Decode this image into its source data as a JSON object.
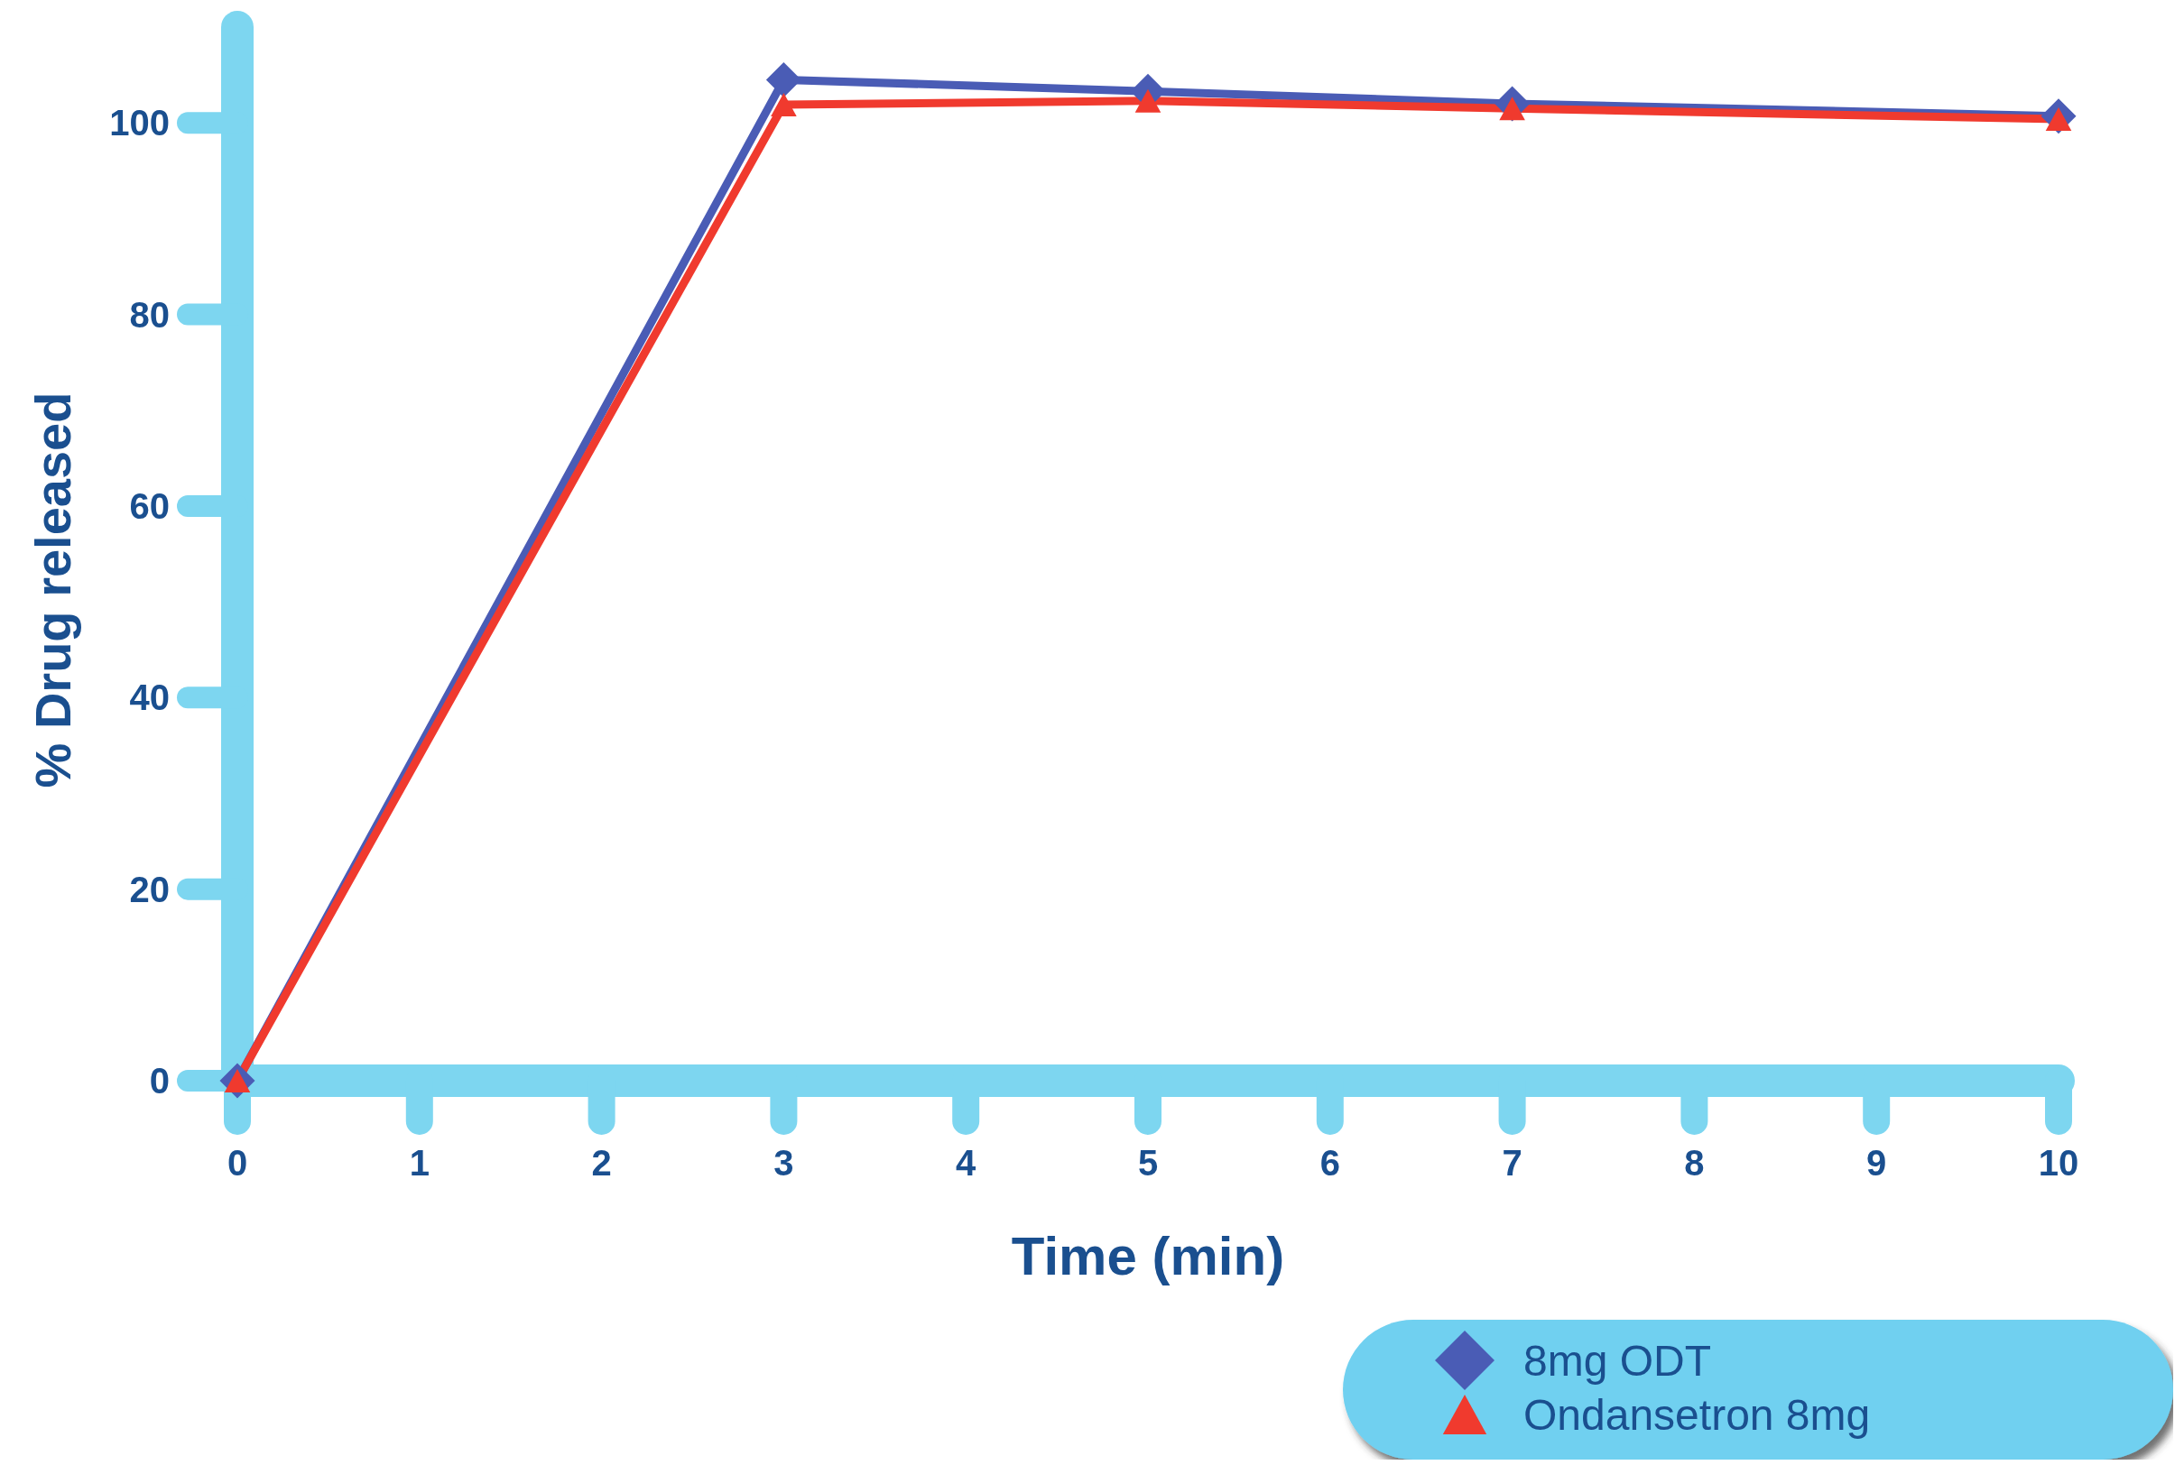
{
  "chart_data": {
    "type": "line",
    "xlabel": "Time (min)",
    "ylabel": "% Drug released",
    "x": [
      0,
      3,
      5,
      7,
      10
    ],
    "series": [
      {
        "name": "8mg ODT",
        "color": "#4a5cb5",
        "marker": "diamond",
        "values": [
          0,
          104.5,
          103.3,
          102,
          100.7
        ]
      },
      {
        "name": "Ondansetron 8mg",
        "color": "#f03a2e",
        "marker": "triangle",
        "values": [
          0,
          101.9,
          102.3,
          101.5,
          100.4
        ]
      }
    ],
    "xlim": [
      0,
      10
    ],
    "xticks": [
      0,
      1,
      2,
      3,
      4,
      5,
      6,
      7,
      8,
      9,
      10
    ],
    "ylim": [
      0,
      110
    ],
    "yticks": [
      0,
      20,
      40,
      60,
      80,
      100
    ],
    "legend": "bottom right",
    "line_style": "solid"
  }
}
